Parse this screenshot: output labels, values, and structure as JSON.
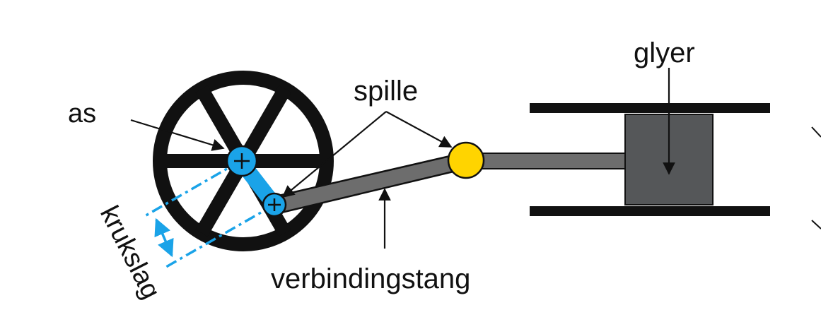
{
  "labels": {
    "shaft": "as",
    "pin": "spille",
    "piston": "glyer",
    "connecting_rod": "verbindingstang",
    "crank_throw": "krukslag"
  },
  "colors": {
    "wheel": "#111111",
    "shaft_hub": "#1aa3e8",
    "crank_pin": "#1aa3e8",
    "wrist_pin": "#ffd400",
    "rod": "#6d6d6d",
    "piston": "#555759",
    "cylinder": "#111111",
    "dimension": "#1aa3e8"
  }
}
